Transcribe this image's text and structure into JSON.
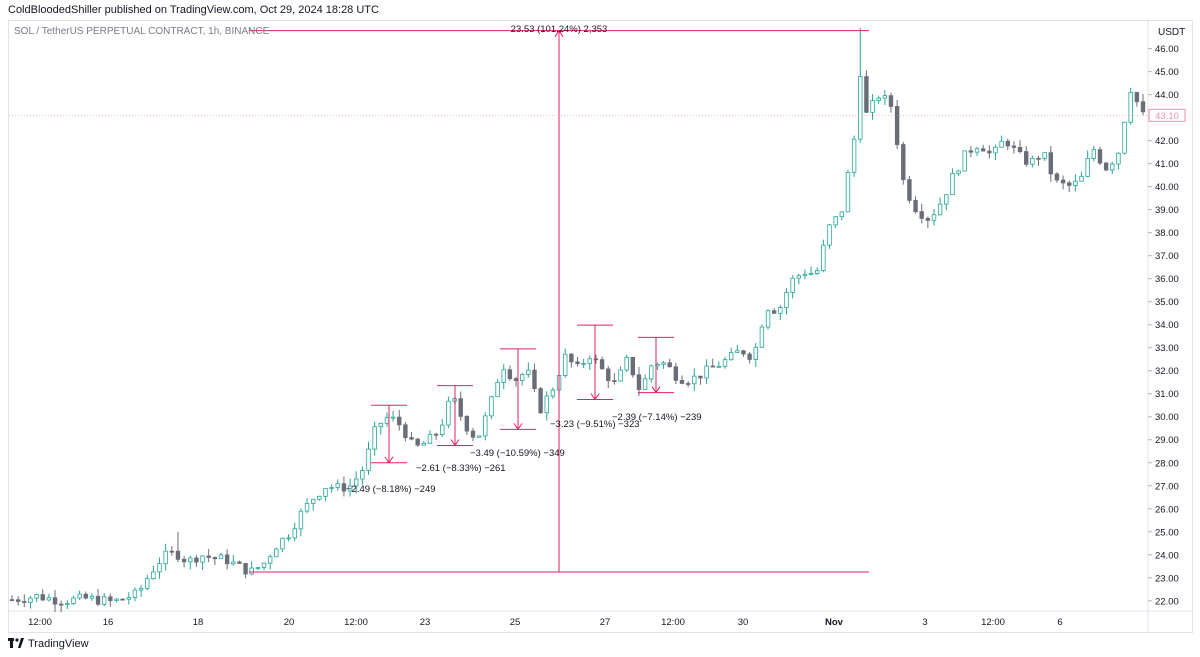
{
  "header": {
    "publisher_line": "ColdBloodedShiller published on TradingView.com, Oct 29, 2024 18:28 UTC",
    "symbol_line": "SOL / TetherUS PERPETUAL CONTRACT, 1h, BINANCE"
  },
  "footer": {
    "brand": "TradingView"
  },
  "colors": {
    "up": "#26a69a",
    "candle_body": "#6a6d78",
    "measure": "#e91e63",
    "last_price": "#f48fb1",
    "grid": "#e0e3eb"
  },
  "chart_data": {
    "type": "candlestick",
    "title": "",
    "xlabel": "",
    "ylabel": "USDT",
    "interval": "1h",
    "ylim": [
      21.6,
      47.2
    ],
    "y_ticks": [
      "22.00",
      "23.00",
      "24.00",
      "25.00",
      "26.00",
      "27.00",
      "28.00",
      "29.00",
      "30.00",
      "31.00",
      "32.00",
      "33.00",
      "34.00",
      "35.00",
      "36.00",
      "37.00",
      "38.00",
      "39.00",
      "40.00",
      "41.00",
      "42.00",
      "43.00",
      "44.00",
      "45.00",
      "46.00"
    ],
    "x_ticks": [
      "12:00",
      "16",
      "18",
      "20",
      "12:00",
      "23",
      "25",
      "27",
      "12:00",
      "30",
      "Nov",
      "3",
      "12:00",
      "6"
    ],
    "last_price": "43.10",
    "price_path": [
      [
        0,
        22.05
      ],
      [
        4,
        22.2
      ],
      [
        8,
        22.0
      ],
      [
        12,
        22.1
      ],
      [
        16,
        21.95
      ],
      [
        20,
        22.3
      ],
      [
        22,
        23.2
      ],
      [
        24,
        23.9
      ],
      [
        26,
        24.1
      ],
      [
        28,
        23.7
      ],
      [
        30,
        24.0
      ],
      [
        32,
        23.85
      ],
      [
        34,
        23.8
      ],
      [
        36,
        23.5
      ],
      [
        38,
        23.25
      ],
      [
        40,
        23.6
      ],
      [
        42,
        24.4
      ],
      [
        44,
        24.9
      ],
      [
        46,
        25.8
      ],
      [
        48,
        26.5
      ],
      [
        50,
        27.0
      ],
      [
        52,
        26.9
      ],
      [
        54,
        27.0
      ],
      [
        56,
        27.8
      ],
      [
        58,
        29.6
      ],
      [
        60,
        30.0
      ],
      [
        62,
        29.6
      ],
      [
        64,
        28.6
      ],
      [
        66,
        28.9
      ],
      [
        68,
        29.4
      ],
      [
        70,
        30.9
      ],
      [
        72,
        29.7
      ],
      [
        74,
        29.0
      ],
      [
        76,
        30.4
      ],
      [
        78,
        32.3
      ],
      [
        80,
        31.6
      ],
      [
        82,
        32.0
      ],
      [
        84,
        30.3
      ],
      [
        86,
        31.2
      ],
      [
        88,
        32.6
      ],
      [
        90,
        32.1
      ],
      [
        92,
        32.7
      ],
      [
        94,
        32.0
      ],
      [
        96,
        31.4
      ],
      [
        98,
        32.5
      ],
      [
        100,
        31.1
      ],
      [
        102,
        32.4
      ],
      [
        104,
        32.3
      ],
      [
        106,
        31.7
      ],
      [
        108,
        31.6
      ],
      [
        110,
        31.9
      ],
      [
        112,
        32.2
      ],
      [
        114,
        32.5
      ],
      [
        116,
        32.9
      ],
      [
        118,
        32.6
      ],
      [
        120,
        34.8
      ],
      [
        122,
        34.6
      ],
      [
        124,
        35.9
      ],
      [
        126,
        36.3
      ],
      [
        128,
        36.2
      ],
      [
        130,
        38.2
      ],
      [
        132,
        38.9
      ],
      [
        134,
        42.0
      ],
      [
        135,
        45.0
      ],
      [
        136,
        43.1
      ],
      [
        138,
        44.0
      ],
      [
        140,
        43.5
      ],
      [
        142,
        40.0
      ],
      [
        144,
        39.0
      ],
      [
        146,
        38.6
      ],
      [
        148,
        39.4
      ],
      [
        150,
        40.6
      ],
      [
        152,
        41.5
      ],
      [
        154,
        41.9
      ],
      [
        156,
        41.3
      ],
      [
        158,
        42.1
      ],
      [
        160,
        41.4
      ],
      [
        162,
        41.0
      ],
      [
        164,
        41.5
      ],
      [
        166,
        40.2
      ],
      [
        168,
        40.0
      ],
      [
        170,
        40.2
      ],
      [
        172,
        41.7
      ],
      [
        174,
        40.8
      ],
      [
        176,
        41.4
      ],
      [
        178,
        44.3
      ],
      [
        180,
        43.1
      ]
    ],
    "wick_spikes": [
      {
        "t": 26,
        "high": 25.0
      },
      {
        "t": 135,
        "high": 46.9
      }
    ],
    "annotations": [
      {
        "label": "23.53 (101.24%) 2,353",
        "from": 23.25,
        "to": 46.78,
        "kind": "total"
      },
      {
        "label": "−2.49 (−8.18%) −249",
        "from": 30.5,
        "to": 28.0,
        "kind": "drawdown"
      },
      {
        "label": "−2.61 (−8.33%) −261",
        "from": 31.35,
        "to": 28.75,
        "kind": "drawdown"
      },
      {
        "label": "−3.49 (−10.59%) −349",
        "from": 32.95,
        "to": 29.45,
        "kind": "drawdown"
      },
      {
        "label": "−3.23 (−9.51%) −323",
        "from": 33.98,
        "to": 30.75,
        "kind": "drawdown"
      },
      {
        "label": "−2.39 (−7.14%) −239",
        "from": 33.45,
        "to": 31.05,
        "kind": "drawdown"
      }
    ]
  }
}
